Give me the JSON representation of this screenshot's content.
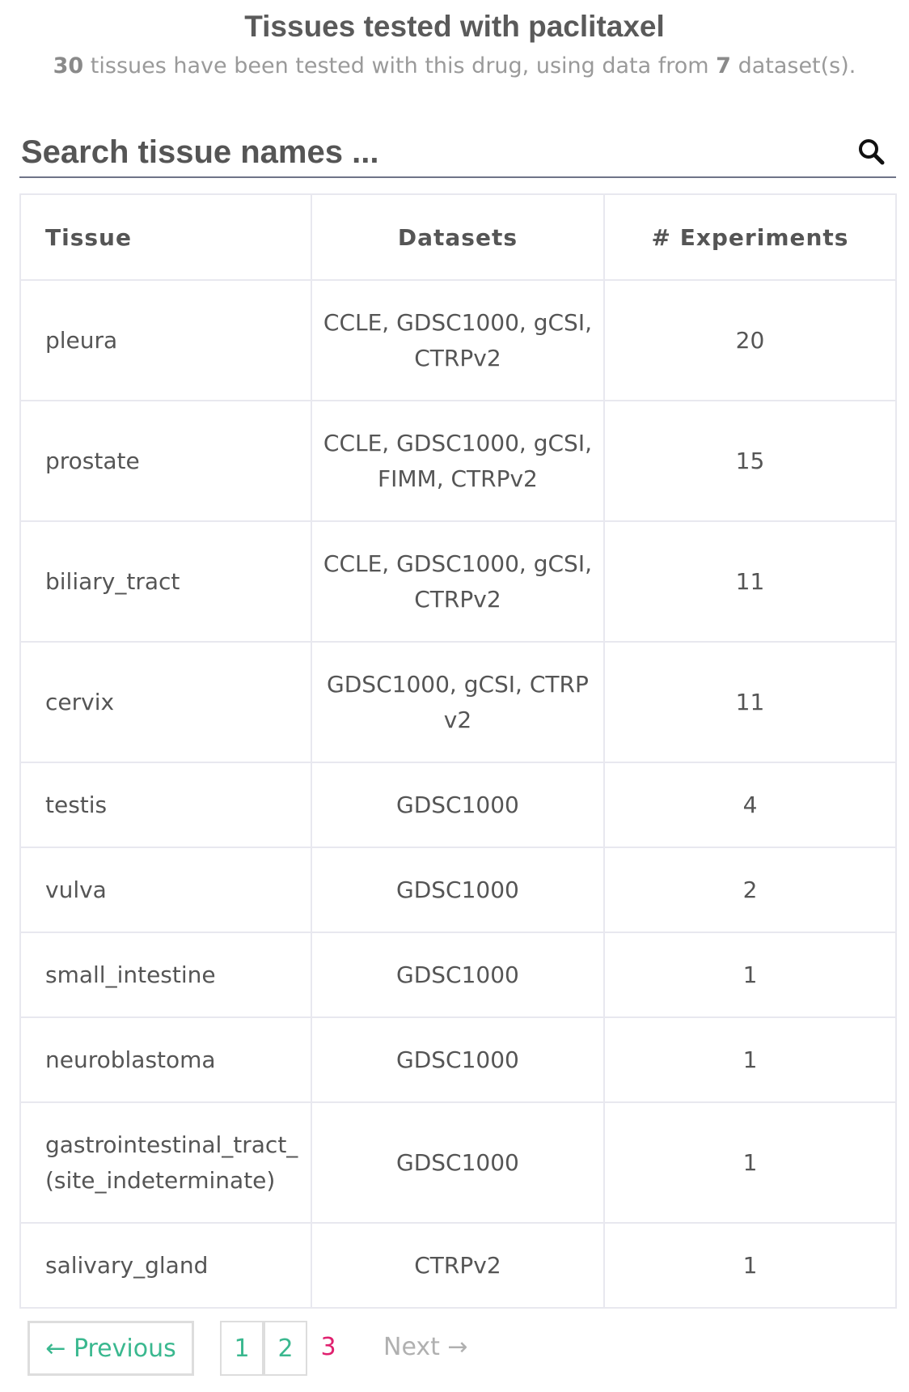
{
  "header": {
    "title": "Tissues tested with paclitaxel",
    "subtitle_count": "30",
    "subtitle_mid": "tissues have been tested with this drug, using data from",
    "subtitle_datasets": "7",
    "subtitle_end": "dataset(s)."
  },
  "search": {
    "placeholder": "Search tissue names ...",
    "icon": "search-icon"
  },
  "table": {
    "columns": [
      "Tissue",
      "Datasets",
      "# Experiments"
    ],
    "rows": [
      {
        "tissue": "pleura",
        "datasets": "CCLE, GDSC1000, gCSI, CTRPv2",
        "experiments": "20"
      },
      {
        "tissue": "prostate",
        "datasets": "CCLE, GDSC1000, gCSI, FIMM, CTRPv2",
        "experiments": "15"
      },
      {
        "tissue": "biliary_tract",
        "datasets": "CCLE, GDSC1000, gCSI, CTRPv2",
        "experiments": "11"
      },
      {
        "tissue": "cervix",
        "datasets": "GDSC1000, gCSI, CTRPv2",
        "experiments": "11"
      },
      {
        "tissue": "testis",
        "datasets": "GDSC1000",
        "experiments": "4"
      },
      {
        "tissue": "vulva",
        "datasets": "GDSC1000",
        "experiments": "2"
      },
      {
        "tissue": "small_intestine",
        "datasets": "GDSC1000",
        "experiments": "1"
      },
      {
        "tissue": "neuroblastoma",
        "datasets": "GDSC1000",
        "experiments": "1"
      },
      {
        "tissue": "gastrointestinal_tract_(site_indeterminate)",
        "datasets": "GDSC1000",
        "experiments": "1"
      },
      {
        "tissue": "salivary_gland",
        "datasets": "CTRPv2",
        "experiments": "1"
      }
    ]
  },
  "pagination": {
    "previous_label": "← Previous",
    "pages": [
      "1",
      "2"
    ],
    "current_page": "3",
    "next_label": "Next →"
  },
  "colors": {
    "link": "#3ab88f",
    "current_page": "#e0216f",
    "disabled": "#b0b0b0"
  }
}
